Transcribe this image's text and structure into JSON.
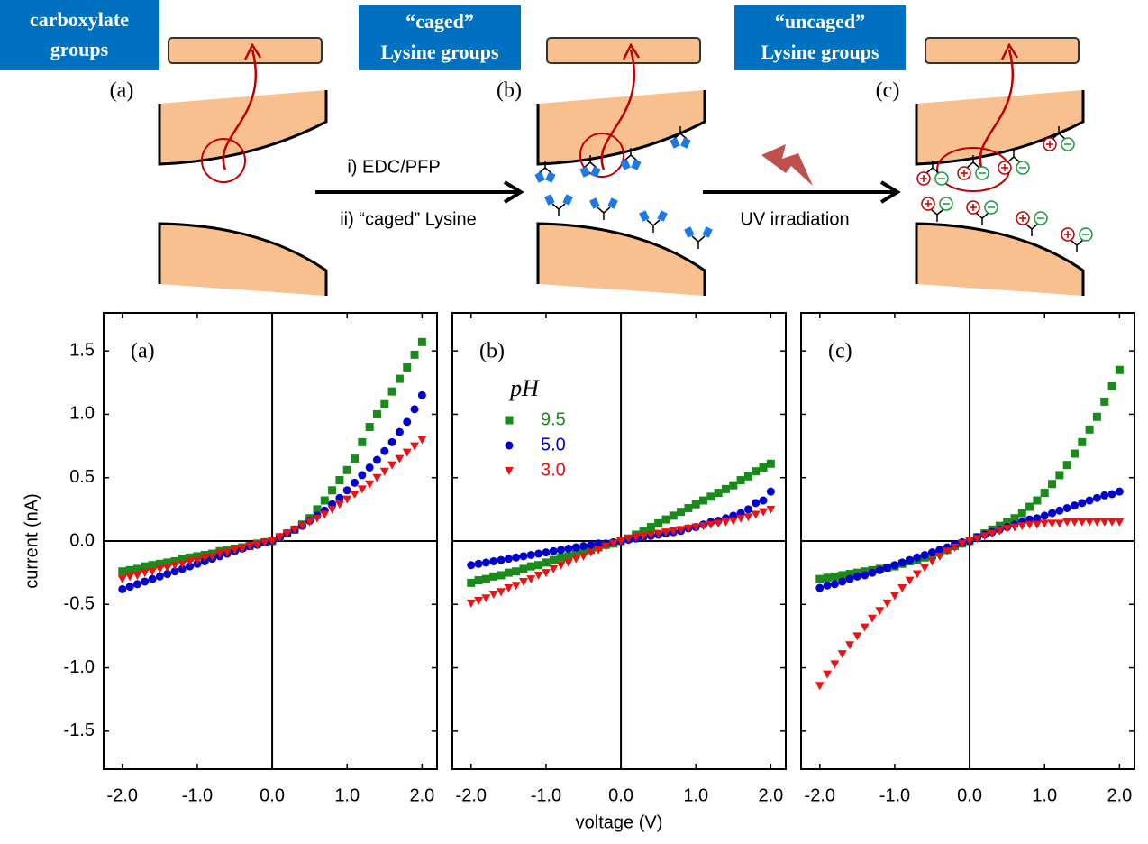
{
  "diagram": {
    "stages": [
      {
        "title": [
          "carboxylate",
          "groups"
        ],
        "label": "(a)"
      },
      {
        "title": [
          "“caged”",
          "Lysine groups"
        ],
        "label": "(b)"
      },
      {
        "title": [
          "“uncaged”",
          "Lysine groups"
        ],
        "label": "(c)"
      }
    ],
    "steps": [
      "i) EDC/PFP",
      "ii) “caged” Lysine",
      "UV irradiation"
    ]
  },
  "chart_data": [
    {
      "type": "scatter",
      "panel_label": "(a)",
      "ylabel": "current (nA)",
      "xlim": [
        -2.25,
        2.2
      ],
      "ylim": [
        -1.8,
        1.8
      ],
      "xticks": [
        {
          "value": -2,
          "label": "-2.0"
        },
        {
          "value": -1,
          "label": "-1.0"
        },
        {
          "value": 0,
          "label": "0.0"
        },
        {
          "value": 1,
          "label": "1.0"
        },
        {
          "value": 2,
          "label": "2.0"
        }
      ],
      "yticks": [
        {
          "value": -1.5,
          "label": "-1.5"
        },
        {
          "value": -1,
          "label": "-1.0"
        },
        {
          "value": -0.5,
          "label": "-0.5"
        },
        {
          "value": 0,
          "label": "0.0"
        },
        0.5,
        {
          "value": 1,
          "label": "1.0"
        },
        1.5
      ],
      "x": [
        -2.0,
        -1.9,
        -1.8,
        -1.7,
        -1.6,
        -1.5,
        -1.4,
        -1.3,
        -1.2,
        -1.1,
        -1.0,
        -0.9,
        -0.8,
        -0.7,
        -0.6,
        -0.5,
        -0.4,
        -0.3,
        -0.2,
        -0.1,
        0.0,
        0.1,
        0.2,
        0.3,
        0.4,
        0.5,
        0.6,
        0.7,
        0.8,
        0.9,
        1.0,
        1.1,
        1.2,
        1.3,
        1.4,
        1.5,
        1.6,
        1.7,
        1.8,
        1.9,
        2.0
      ],
      "series": [
        {
          "color": "#1a8a1a",
          "marker": "square",
          "values": [
            -0.24,
            -0.23,
            -0.22,
            -0.2,
            -0.19,
            -0.18,
            -0.17,
            -0.16,
            -0.14,
            -0.13,
            -0.12,
            -0.11,
            -0.1,
            -0.08,
            -0.07,
            -0.06,
            -0.05,
            -0.04,
            -0.02,
            -0.01,
            0,
            0.03,
            0.06,
            0.09,
            0.13,
            0.18,
            0.25,
            0.32,
            0.4,
            0.48,
            0.56,
            0.65,
            0.78,
            0.9,
            1.0,
            1.08,
            1.18,
            1.28,
            1.37,
            1.47,
            1.57
          ]
        },
        {
          "color": "#0000cc",
          "marker": "circle",
          "values": [
            -0.38,
            -0.36,
            -0.34,
            -0.32,
            -0.3,
            -0.28,
            -0.26,
            -0.24,
            -0.22,
            -0.2,
            -0.18,
            -0.16,
            -0.14,
            -0.12,
            -0.1,
            -0.08,
            -0.06,
            -0.04,
            -0.03,
            -0.01,
            0,
            0.03,
            0.06,
            0.09,
            0.12,
            0.16,
            0.2,
            0.24,
            0.29,
            0.34,
            0.4,
            0.46,
            0.52,
            0.58,
            0.64,
            0.71,
            0.78,
            0.86,
            0.94,
            1.04,
            1.15
          ]
        },
        {
          "color": "#ee1111",
          "marker": "triangle",
          "values": [
            -0.3,
            -0.28,
            -0.27,
            -0.25,
            -0.24,
            -0.22,
            -0.21,
            -0.19,
            -0.18,
            -0.16,
            -0.15,
            -0.13,
            -0.12,
            -0.1,
            -0.09,
            -0.07,
            -0.06,
            -0.04,
            -0.03,
            -0.01,
            0,
            0.03,
            0.06,
            0.09,
            0.12,
            0.15,
            0.18,
            0.21,
            0.25,
            0.29,
            0.33,
            0.37,
            0.41,
            0.45,
            0.5,
            0.55,
            0.6,
            0.65,
            0.7,
            0.75,
            0.8
          ]
        }
      ]
    },
    {
      "type": "scatter",
      "panel_label": "(b)",
      "xlabel": "voltage (V)",
      "legend_title": "pH",
      "xlim": [
        -2.25,
        2.2
      ],
      "ylim": [
        -1.8,
        1.8
      ],
      "xticks": [
        {
          "value": -2,
          "label": "-2.0"
        },
        {
          "value": -1,
          "label": "-1.0"
        },
        {
          "value": 0,
          "label": "0.0"
        },
        {
          "value": 1,
          "label": "1.0"
        },
        {
          "value": 2,
          "label": "2.0"
        }
      ],
      "x": [
        -2.0,
        -1.9,
        -1.8,
        -1.7,
        -1.6,
        -1.5,
        -1.4,
        -1.3,
        -1.2,
        -1.1,
        -1.0,
        -0.9,
        -0.8,
        -0.7,
        -0.6,
        -0.5,
        -0.4,
        -0.3,
        -0.2,
        -0.1,
        0.0,
        0.1,
        0.2,
        0.3,
        0.4,
        0.5,
        0.6,
        0.7,
        0.8,
        0.9,
        1.0,
        1.1,
        1.2,
        1.3,
        1.4,
        1.5,
        1.6,
        1.7,
        1.8,
        1.9,
        2.0
      ],
      "series": [
        {
          "name": "9.5",
          "color": "#1a8a1a",
          "marker": "square",
          "values": [
            -0.33,
            -0.31,
            -0.3,
            -0.28,
            -0.27,
            -0.25,
            -0.24,
            -0.22,
            -0.2,
            -0.19,
            -0.17,
            -0.15,
            -0.13,
            -0.12,
            -0.1,
            -0.08,
            -0.07,
            -0.05,
            -0.03,
            -0.02,
            0,
            0.02,
            0.05,
            0.08,
            0.11,
            0.14,
            0.17,
            0.2,
            0.23,
            0.26,
            0.29,
            0.32,
            0.35,
            0.38,
            0.41,
            0.44,
            0.48,
            0.51,
            0.55,
            0.58,
            0.61
          ]
        },
        {
          "name": "5.0",
          "color": "#0000cc",
          "marker": "circle",
          "values": [
            -0.19,
            -0.18,
            -0.17,
            -0.16,
            -0.15,
            -0.14,
            -0.13,
            -0.12,
            -0.11,
            -0.1,
            -0.09,
            -0.08,
            -0.07,
            -0.06,
            -0.05,
            -0.04,
            -0.03,
            -0.02,
            -0.02,
            -0.01,
            0,
            0.01,
            0.02,
            0.03,
            0.04,
            0.05,
            0.06,
            0.07,
            0.08,
            0.1,
            0.11,
            0.13,
            0.15,
            0.16,
            0.18,
            0.2,
            0.22,
            0.25,
            0.3,
            0.32,
            0.39
          ]
        },
        {
          "name": "3.0",
          "color": "#ee1111",
          "marker": "triangle",
          "values": [
            -0.49,
            -0.47,
            -0.45,
            -0.42,
            -0.4,
            -0.37,
            -0.35,
            -0.32,
            -0.3,
            -0.27,
            -0.25,
            -0.22,
            -0.19,
            -0.17,
            -0.14,
            -0.12,
            -0.09,
            -0.07,
            -0.04,
            -0.02,
            0,
            0.02,
            0.03,
            0.04,
            0.05,
            0.06,
            0.07,
            0.08,
            0.09,
            0.1,
            0.11,
            0.12,
            0.13,
            0.14,
            0.15,
            0.16,
            0.18,
            0.19,
            0.21,
            0.23,
            0.25
          ]
        }
      ]
    },
    {
      "type": "scatter",
      "panel_label": "(c)",
      "xlim": [
        -2.25,
        2.2
      ],
      "ylim": [
        -1.8,
        1.8
      ],
      "xticks": [
        {
          "value": -2,
          "label": "-2.0"
        },
        {
          "value": -1,
          "label": "-1.0"
        },
        {
          "value": 0,
          "label": "0.0"
        },
        {
          "value": 1,
          "label": "1.0"
        },
        {
          "value": 2,
          "label": "2.0"
        }
      ],
      "x": [
        -2.0,
        -1.9,
        -1.8,
        -1.7,
        -1.6,
        -1.5,
        -1.4,
        -1.3,
        -1.2,
        -1.1,
        -1.0,
        -0.9,
        -0.8,
        -0.7,
        -0.6,
        -0.5,
        -0.4,
        -0.3,
        -0.2,
        -0.1,
        0.0,
        0.1,
        0.2,
        0.3,
        0.4,
        0.5,
        0.6,
        0.7,
        0.8,
        0.9,
        1.0,
        1.1,
        1.2,
        1.3,
        1.4,
        1.5,
        1.6,
        1.7,
        1.8,
        1.9,
        2.0
      ],
      "series": [
        {
          "color": "#1a8a1a",
          "marker": "square",
          "values": [
            -0.3,
            -0.29,
            -0.28,
            -0.27,
            -0.26,
            -0.25,
            -0.24,
            -0.23,
            -0.22,
            -0.21,
            -0.2,
            -0.18,
            -0.16,
            -0.15,
            -0.13,
            -0.11,
            -0.09,
            -0.07,
            -0.04,
            -0.02,
            0,
            0.03,
            0.06,
            0.09,
            0.12,
            0.15,
            0.18,
            0.22,
            0.27,
            0.32,
            0.38,
            0.45,
            0.52,
            0.6,
            0.69,
            0.78,
            0.88,
            0.98,
            1.1,
            1.22,
            1.35
          ]
        },
        {
          "color": "#0000cc",
          "marker": "circle",
          "values": [
            -0.37,
            -0.35,
            -0.34,
            -0.32,
            -0.3,
            -0.28,
            -0.27,
            -0.25,
            -0.23,
            -0.21,
            -0.19,
            -0.17,
            -0.15,
            -0.13,
            -0.11,
            -0.09,
            -0.07,
            -0.05,
            -0.03,
            -0.01,
            0,
            0.03,
            0.05,
            0.07,
            0.09,
            0.11,
            0.13,
            0.15,
            0.17,
            0.18,
            0.2,
            0.22,
            0.24,
            0.26,
            0.28,
            0.3,
            0.32,
            0.34,
            0.36,
            0.37,
            0.39
          ]
        },
        {
          "color": "#ee1111",
          "marker": "triangle",
          "values": [
            -1.14,
            -1.05,
            -0.97,
            -0.89,
            -0.82,
            -0.75,
            -0.68,
            -0.61,
            -0.55,
            -0.49,
            -0.43,
            -0.37,
            -0.31,
            -0.26,
            -0.21,
            -0.16,
            -0.12,
            -0.08,
            -0.05,
            -0.02,
            0,
            0.02,
            0.04,
            0.06,
            0.08,
            0.1,
            0.11,
            0.12,
            0.13,
            0.13,
            0.14,
            0.14,
            0.14,
            0.15,
            0.15,
            0.15,
            0.15,
            0.15,
            0.15,
            0.15,
            0.15
          ]
        }
      ]
    }
  ]
}
